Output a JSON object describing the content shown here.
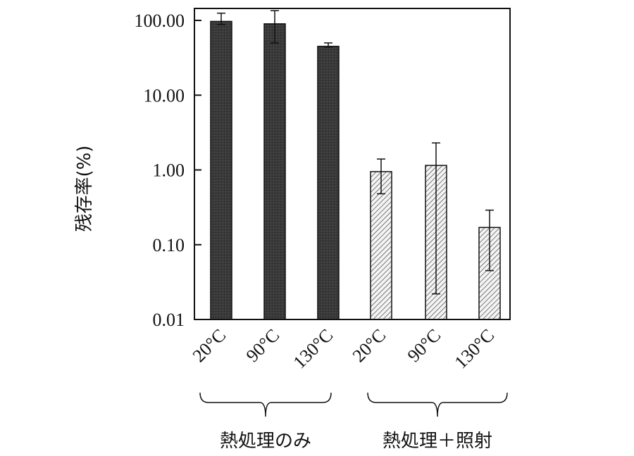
{
  "chart_data": {
    "type": "bar",
    "yscale": "log",
    "ylim": [
      0.01,
      200
    ],
    "ylabel": "残存率(%)",
    "yticks": [
      "100.00",
      "10.00",
      "1.00",
      "0.10",
      "0.01"
    ],
    "ytick_values": [
      100,
      10,
      1,
      0.1,
      0.01
    ],
    "categories": [
      "20°C",
      "90°C",
      "130°C",
      "20°C",
      "90°C",
      "130°C"
    ],
    "groups": [
      {
        "label": "熱処理のみ",
        "categories": [
          0,
          1,
          2
        ]
      },
      {
        "label": "熱処理＋照射",
        "categories": [
          3,
          4,
          5
        ]
      }
    ],
    "series": [
      {
        "values": [
          97,
          90,
          45,
          0.95,
          1.15,
          0.17
        ],
        "error_upper": [
          125,
          135,
          50,
          1.4,
          2.3,
          0.29
        ],
        "error_lower": [
          88,
          50,
          44,
          0.48,
          0.022,
          0.045
        ],
        "fill_patterns": [
          "dark",
          "dark",
          "dark",
          "hatched",
          "hatched",
          "hatched"
        ]
      }
    ],
    "grid": false,
    "legend": "none"
  },
  "colors": {
    "dark_bar": "#3a3a3a",
    "hatch_line": "#444444",
    "axis": "#111111"
  }
}
